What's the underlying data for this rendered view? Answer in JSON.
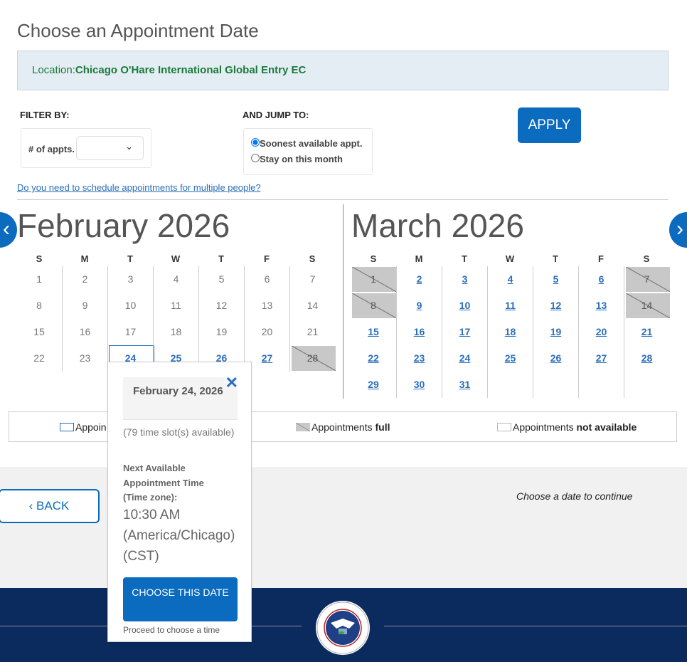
{
  "title": "Choose an Appointment Date",
  "location": {
    "label": "Location:",
    "value": "Chicago O'Hare International Global Entry EC"
  },
  "filter": {
    "label": "FILTER BY:",
    "appts_label": "# of appts.",
    "appts_value": ""
  },
  "jump": {
    "label": "AND JUMP TO:",
    "options": [
      {
        "label": "Soonest available appt.",
        "checked": true
      },
      {
        "label": "Stay on this month",
        "checked": false
      }
    ]
  },
  "apply_label": "APPLY",
  "multi_link": "Do you need to schedule appointments for multiple people?",
  "weekdays": [
    "S",
    "M",
    "T",
    "W",
    "T",
    "F",
    "S"
  ],
  "months": [
    {
      "title": "February 2026",
      "weeks": [
        [
          {
            "d": "1",
            "s": "unavailable"
          },
          {
            "d": "2",
            "s": "unavailable"
          },
          {
            "d": "3",
            "s": "unavailable"
          },
          {
            "d": "4",
            "s": "unavailable"
          },
          {
            "d": "5",
            "s": "unavailable"
          },
          {
            "d": "6",
            "s": "unavailable"
          },
          {
            "d": "7",
            "s": "unavailable"
          }
        ],
        [
          {
            "d": "8",
            "s": "unavailable"
          },
          {
            "d": "9",
            "s": "unavailable"
          },
          {
            "d": "10",
            "s": "unavailable"
          },
          {
            "d": "11",
            "s": "unavailable"
          },
          {
            "d": "12",
            "s": "unavailable"
          },
          {
            "d": "13",
            "s": "unavailable"
          },
          {
            "d": "14",
            "s": "unavailable"
          }
        ],
        [
          {
            "d": "15",
            "s": "unavailable"
          },
          {
            "d": "16",
            "s": "unavailable"
          },
          {
            "d": "17",
            "s": "unavailable"
          },
          {
            "d": "18",
            "s": "unavailable"
          },
          {
            "d": "19",
            "s": "unavailable"
          },
          {
            "d": "20",
            "s": "unavailable"
          },
          {
            "d": "21",
            "s": "unavailable"
          }
        ],
        [
          {
            "d": "22",
            "s": "unavailable"
          },
          {
            "d": "23",
            "s": "unavailable"
          },
          {
            "d": "24",
            "s": "selected"
          },
          {
            "d": "25",
            "s": "available-plain"
          },
          {
            "d": "26",
            "s": "available-plain"
          },
          {
            "d": "27",
            "s": "available"
          },
          {
            "d": "28",
            "s": "full"
          }
        ]
      ]
    },
    {
      "title": "March 2026",
      "weeks": [
        [
          {
            "d": "1",
            "s": "full"
          },
          {
            "d": "2",
            "s": "available"
          },
          {
            "d": "3",
            "s": "available"
          },
          {
            "d": "4",
            "s": "available"
          },
          {
            "d": "5",
            "s": "available"
          },
          {
            "d": "6",
            "s": "available"
          },
          {
            "d": "7",
            "s": "full"
          }
        ],
        [
          {
            "d": "8",
            "s": "full"
          },
          {
            "d": "9",
            "s": "available"
          },
          {
            "d": "10",
            "s": "available"
          },
          {
            "d": "11",
            "s": "available"
          },
          {
            "d": "12",
            "s": "available"
          },
          {
            "d": "13",
            "s": "available"
          },
          {
            "d": "14",
            "s": "full"
          }
        ],
        [
          {
            "d": "15",
            "s": "available"
          },
          {
            "d": "16",
            "s": "available"
          },
          {
            "d": "17",
            "s": "available"
          },
          {
            "d": "18",
            "s": "available"
          },
          {
            "d": "19",
            "s": "available"
          },
          {
            "d": "20",
            "s": "available"
          },
          {
            "d": "21",
            "s": "available"
          }
        ],
        [
          {
            "d": "22",
            "s": "available"
          },
          {
            "d": "23",
            "s": "available"
          },
          {
            "d": "24",
            "s": "available"
          },
          {
            "d": "25",
            "s": "available"
          },
          {
            "d": "26",
            "s": "available"
          },
          {
            "d": "27",
            "s": "available"
          },
          {
            "d": "28",
            "s": "available"
          }
        ],
        [
          {
            "d": "29",
            "s": "available"
          },
          {
            "d": "30",
            "s": "available"
          },
          {
            "d": "31",
            "s": "available"
          },
          {
            "d": "",
            "s": "empty"
          },
          {
            "d": "",
            "s": "empty"
          },
          {
            "d": "",
            "s": "empty"
          },
          {
            "d": "",
            "s": "empty"
          }
        ]
      ]
    }
  ],
  "legend": {
    "available": "Appoin",
    "full_prefix": "Appointments ",
    "full_bold": "full",
    "na_prefix": "Appointments ",
    "na_bold": "not available"
  },
  "popup": {
    "date": "February 24, 2026",
    "slots": "(79 time slot(s) available)",
    "next_label": "Next Available Appointment Time (Time zone):",
    "time": "10:30 AM (America/Chicago) (CST)",
    "button": "CHOOSE THIS DATE",
    "hint": "Proceed to choose a time"
  },
  "back_label": "BACK",
  "continue_text": "Choose a date to continue",
  "colors": {
    "primary": "#0a6bbf",
    "footer": "#0b2a5e",
    "location_text": "#1a7a3a"
  }
}
